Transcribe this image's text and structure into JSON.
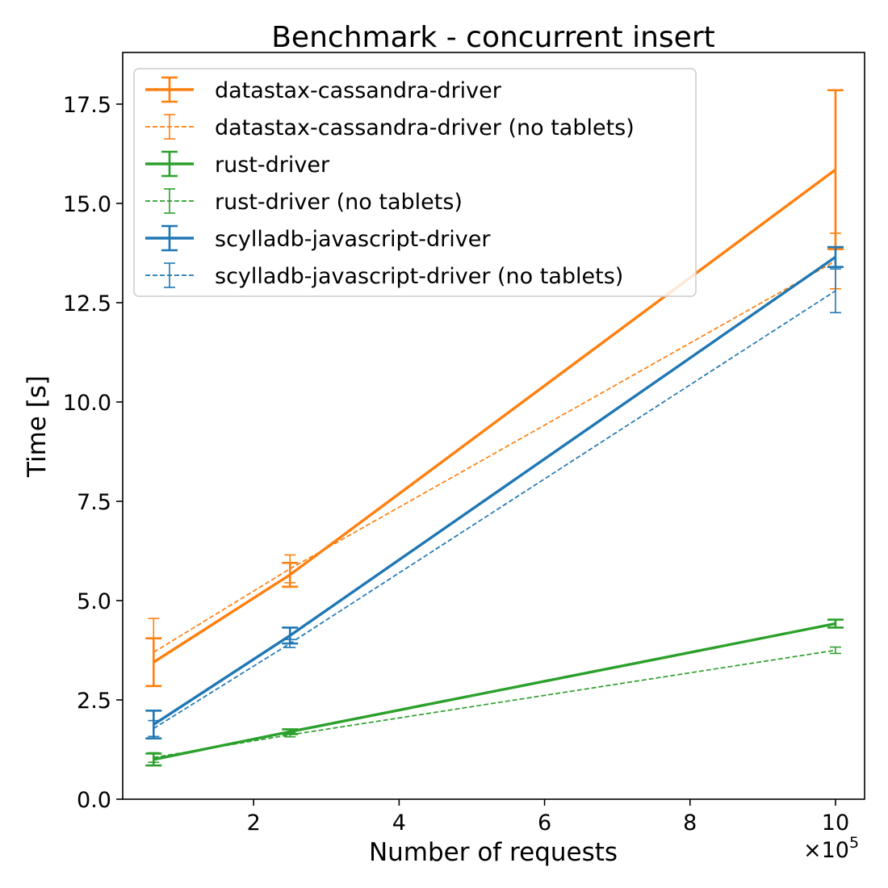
{
  "chart_data": {
    "type": "line",
    "title": "Benchmark - concurrent insert",
    "xlabel": "Number of requests",
    "ylabel": "Time [s]",
    "x_offset_text": "×10",
    "x_offset_exponent": "5",
    "x_scale_factor": 100000,
    "xlim": [
      0.2,
      10.4
    ],
    "ylim": [
      0,
      18.8
    ],
    "xticks": [
      2,
      4,
      6,
      8,
      10
    ],
    "xtick_labels": [
      "2",
      "4",
      "6",
      "8",
      "10"
    ],
    "yticks": [
      0,
      2.5,
      5,
      7.5,
      10,
      12.5,
      15,
      17.5
    ],
    "ytick_labels": [
      "0.0",
      "2.5",
      "5.0",
      "7.5",
      "10.0",
      "12.5",
      "15.0",
      "17.5"
    ],
    "grid": false,
    "legend_position": "top-left",
    "x": [
      0.625,
      2.5,
      10
    ],
    "series": [
      {
        "name": "datastax-cassandra-driver",
        "color": "#ff7f0e",
        "style": "solid",
        "values": [
          3.45,
          5.65,
          15.85
        ],
        "yerr": [
          0.6,
          0.3,
          2.0
        ]
      },
      {
        "name": "datastax-cassandra-driver (no tablets)",
        "color": "#ff7f0e",
        "style": "dashed",
        "values": [
          3.7,
          5.8,
          13.55
        ],
        "yerr": [
          0.85,
          0.35,
          0.7
        ]
      },
      {
        "name": "rust-driver",
        "color": "#2ca02c",
        "style": "solid",
        "values": [
          1.0,
          1.7,
          4.42
        ],
        "yerr": [
          0.15,
          0.06,
          0.1
        ]
      },
      {
        "name": "rust-driver (no tablets)",
        "color": "#2ca02c",
        "style": "dashed",
        "values": [
          1.05,
          1.62,
          3.75
        ],
        "yerr": [
          0.12,
          0.05,
          0.08
        ]
      },
      {
        "name": "scylladb-javascript-driver",
        "color": "#1f77b4",
        "style": "solid",
        "values": [
          1.88,
          4.12,
          13.65
        ],
        "yerr": [
          0.35,
          0.2,
          0.25
        ]
      },
      {
        "name": "scylladb-javascript-driver (no tablets)",
        "color": "#1f77b4",
        "style": "dashed",
        "values": [
          1.78,
          3.92,
          12.8
        ],
        "yerr": [
          0.2,
          0.1,
          0.55
        ]
      }
    ]
  }
}
